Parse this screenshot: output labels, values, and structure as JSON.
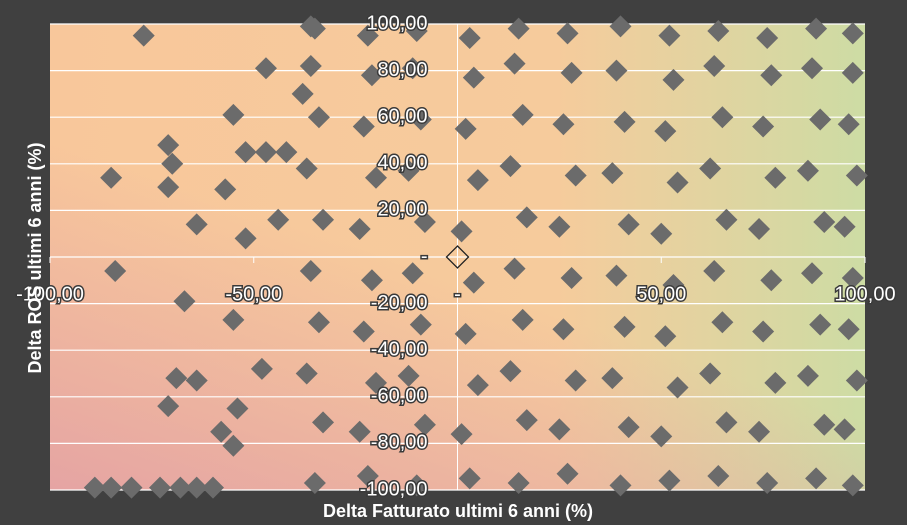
{
  "chart_data": {
    "type": "scatter",
    "xlabel": "Delta Fatturato ultimi 6 anni (%)",
    "ylabel": "Delta ROS ultimi 6 anni (%)",
    "xlim": [
      -100,
      100
    ],
    "ylim": [
      -100,
      100
    ],
    "xticks": [
      {
        "value": -100,
        "label": "-100,00"
      },
      {
        "value": -50,
        "label": "-50,00"
      },
      {
        "value": 0,
        "label": "-"
      },
      {
        "value": 50,
        "label": "50,00"
      },
      {
        "value": 100,
        "label": "100,00"
      }
    ],
    "yticks": [
      {
        "value": -100,
        "label": "-100,00"
      },
      {
        "value": -80,
        "label": "-80,00"
      },
      {
        "value": -60,
        "label": "-60,00"
      },
      {
        "value": -40,
        "label": "-40,00"
      },
      {
        "value": -20,
        "label": "-20,00"
      },
      {
        "value": 0,
        "label": "-"
      },
      {
        "value": 20,
        "label": "20,00"
      },
      {
        "value": 40,
        "label": "40,00"
      },
      {
        "value": 60,
        "label": "60,00"
      },
      {
        "value": 80,
        "label": "80,00"
      },
      {
        "value": 100,
        "label": "100,00"
      }
    ],
    "grid": true,
    "series": [
      {
        "color": "#6b6b6b",
        "marker": "diamond",
        "x": [
          -35,
          -22,
          -10,
          3,
          15,
          27,
          40,
          52,
          64,
          76,
          88,
          97,
          -33,
          -24,
          -8,
          1,
          17,
          25,
          42,
          50,
          66,
          74,
          90,
          95,
          -37,
          -20,
          -12,
          5,
          13,
          29,
          38,
          54,
          62,
          78,
          86,
          98,
          -34,
          -23,
          -9,
          2,
          16,
          26,
          41,
          51,
          65,
          75,
          89,
          96,
          -36,
          -21,
          -11,
          4,
          14,
          28,
          39,
          53,
          63,
          77,
          87,
          97,
          -33,
          -24,
          -8,
          1,
          17,
          25,
          42,
          50,
          66,
          74,
          90,
          95,
          -37,
          -20,
          -12,
          5,
          13,
          29,
          38,
          54,
          62,
          78,
          86,
          98,
          -34,
          -23,
          -9,
          2,
          16,
          26,
          41,
          51,
          65,
          75,
          89,
          96,
          -36,
          -21,
          -11,
          4,
          14,
          28,
          39,
          53,
          63,
          77,
          87,
          97,
          -35,
          -22,
          -10,
          3,
          15,
          27,
          40,
          52,
          64,
          76,
          88,
          97,
          -77,
          -84,
          -85,
          -71,
          -70,
          -71,
          -64,
          -67,
          -69,
          -64,
          -71,
          -58,
          -57,
          -55,
          -52,
          -48,
          -47,
          -52,
          -47,
          -42,
          -44,
          -55,
          -54,
          -55,
          -89,
          -85,
          -80,
          -73,
          -68,
          -64,
          -60,
          -36,
          -38
        ],
        "y": [
          -97,
          -94,
          -98,
          -95,
          -97,
          -93,
          -98,
          -96,
          -94,
          -97,
          -95,
          -98,
          -71,
          -75,
          -72,
          -76,
          -70,
          -74,
          -73,
          -77,
          -71,
          -75,
          -72,
          -74,
          -50,
          -54,
          -51,
          -55,
          -49,
          -53,
          -52,
          -56,
          -50,
          -54,
          -51,
          -53,
          -28,
          -32,
          -29,
          -33,
          -27,
          -31,
          -30,
          -34,
          -28,
          -32,
          -29,
          -31,
          -6,
          -10,
          -7,
          -11,
          -5,
          -9,
          -8,
          -12,
          -6,
          -10,
          -7,
          -9,
          16,
          12,
          15,
          11,
          17,
          13,
          14,
          10,
          16,
          12,
          15,
          13,
          38,
          34,
          37,
          33,
          39,
          35,
          36,
          32,
          38,
          34,
          37,
          35,
          60,
          56,
          59,
          55,
          61,
          57,
          58,
          54,
          60,
          56,
          59,
          57,
          82,
          78,
          81,
          77,
          83,
          79,
          80,
          76,
          82,
          78,
          81,
          79,
          98,
          95,
          97,
          94,
          98,
          96,
          99,
          95,
          97,
          94,
          98,
          96,
          95,
          -6,
          34,
          48,
          40,
          30,
          14,
          -19,
          -52,
          -53,
          -64,
          -75,
          29,
          61,
          8,
          -48,
          81,
          45,
          45,
          45,
          16,
          -27,
          -65,
          -81,
          -99,
          -99,
          -99,
          -99,
          -99,
          -99,
          -99,
          99,
          70
        ]
      },
      {
        "color": "none",
        "marker": "diamond",
        "x": [
          0
        ],
        "y": [
          0
        ]
      }
    ]
  }
}
